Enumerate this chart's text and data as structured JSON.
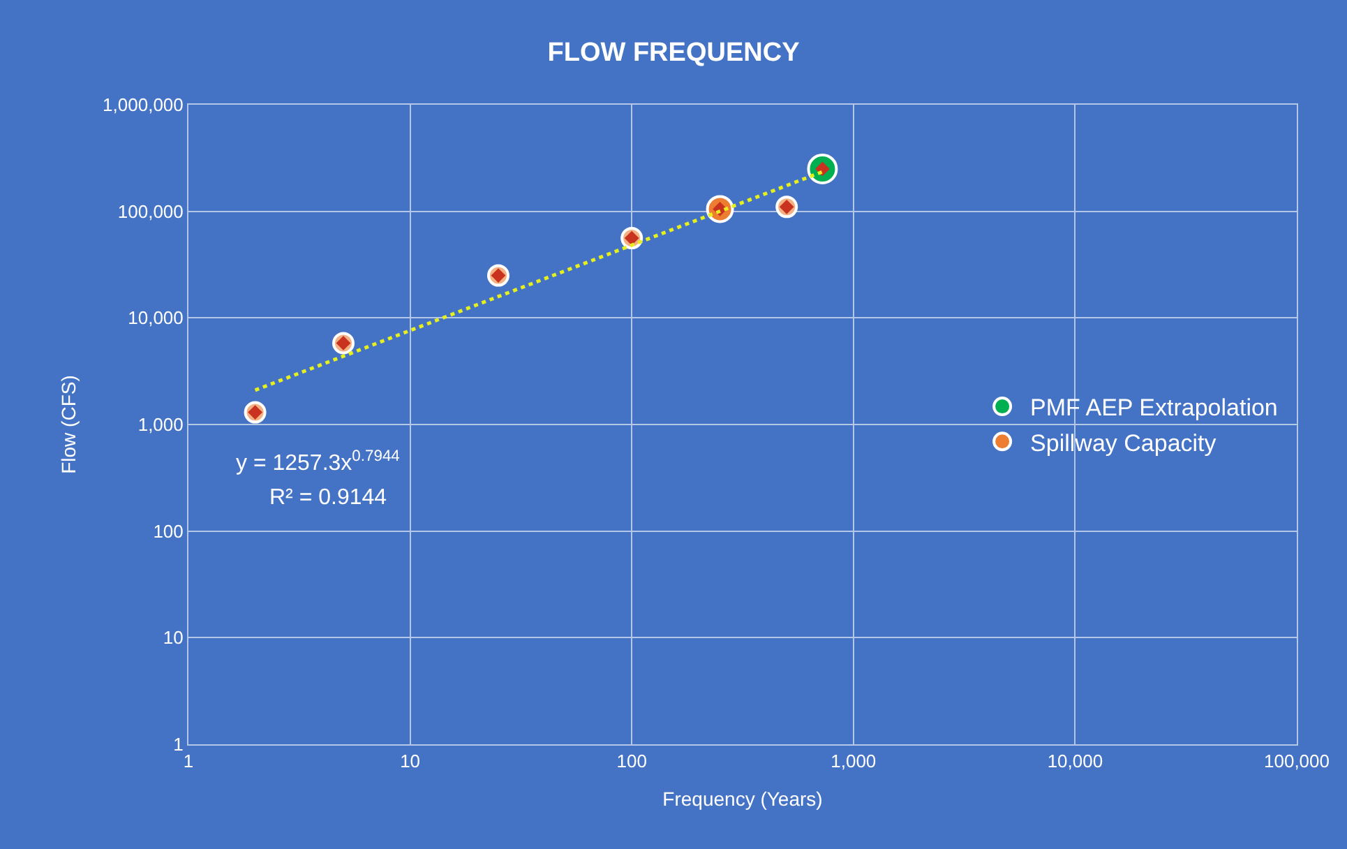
{
  "chart_data": {
    "type": "scatter",
    "title": "FLOW FREQUENCY",
    "xlabel": "Frequency (Years)",
    "ylabel": "Flow (CFS)",
    "log": "xy",
    "xlim": [
      1,
      100000
    ],
    "ylim": [
      1,
      1000000
    ],
    "xticks": [
      1,
      10,
      100,
      {
        "value": 1000,
        "label": "1,000"
      },
      {
        "value": 10000,
        "label": "10,000"
      },
      {
        "value": 100000,
        "label": "100,000"
      }
    ],
    "yticks": [
      1,
      10,
      100,
      {
        "value": 1000,
        "label": "1,000"
      },
      {
        "value": 10000,
        "label": "10,000"
      },
      {
        "value": 100000,
        "label": "100,000"
      },
      {
        "value": 1000000,
        "label": "1,000,000"
      }
    ],
    "grid": true,
    "legend": "right",
    "marker": "circle",
    "series": [
      {
        "name": "PMF AEP Extrapolation",
        "color": "#00b050",
        "x": [
          725
        ],
        "values": [
          250000
        ]
      },
      {
        "color": "#f4b183",
        "x": [
          2,
          5,
          25,
          100,
          500
        ],
        "values": [
          1300,
          5800,
          25000,
          56000,
          110000
        ]
      },
      {
        "name": "Spillway Capacity",
        "color": "#ed7d31",
        "x": [
          250
        ],
        "values": [
          105000
        ]
      },
      {
        "color": "#c8321e",
        "marker": "diamond",
        "x": [
          2,
          5,
          25,
          100,
          250,
          500,
          725
        ],
        "values": [
          1300,
          5800,
          25000,
          56000,
          105000,
          110000,
          250000
        ]
      },
      {
        "type": "line",
        "color": "#e6f01e",
        "line_style": "dotted",
        "marker": "none",
        "x": [
          2,
          725
        ],
        "values": [
          2100,
          235000
        ]
      }
    ],
    "annotations": [
      "y = 1257.3x$^{0.7944}$",
      "R² = 0.9144"
    ]
  }
}
